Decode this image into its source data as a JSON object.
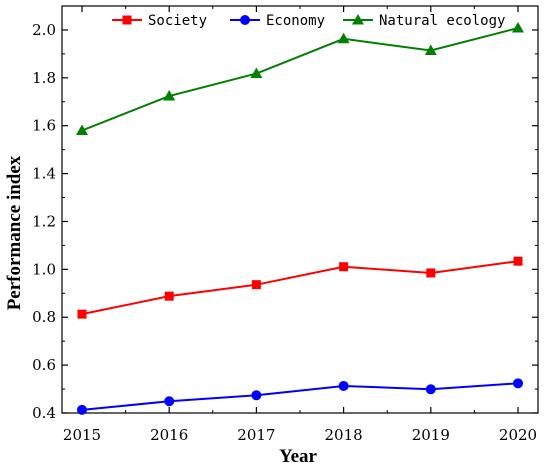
{
  "chart_data": {
    "type": "line",
    "title": "",
    "xlabel": "Year",
    "ylabel": "Performance index",
    "x": [
      2015,
      2016,
      2017,
      2018,
      2019,
      2020
    ],
    "x_tick_labels": [
      "2015",
      "2016",
      "2017",
      "2018",
      "2019",
      "2020"
    ],
    "ylim": [
      0.4,
      2.1
    ],
    "y_ticks": [
      0.4,
      0.6,
      0.8,
      1.0,
      1.2,
      1.4,
      1.6,
      1.8,
      2.0
    ],
    "y_tick_labels": [
      "0.4",
      "0.6",
      "0.8",
      "1.0",
      "1.2",
      "1.4",
      "1.6",
      "1.8",
      "2.0"
    ],
    "grid": false,
    "legend_position": "top",
    "series": [
      {
        "name": "Society",
        "color": "#ff0000",
        "marker": "square",
        "values": [
          0.813,
          0.888,
          0.936,
          1.011,
          0.985,
          1.034
        ]
      },
      {
        "name": "Economy",
        "color": "#0000ff",
        "marker": "circle",
        "values": [
          0.413,
          0.449,
          0.474,
          0.513,
          0.499,
          0.524
        ]
      },
      {
        "name": "Natural ecology",
        "color": "#008000",
        "marker": "triangle",
        "values": [
          1.58,
          1.724,
          1.818,
          1.963,
          1.914,
          2.008
        ]
      }
    ]
  }
}
